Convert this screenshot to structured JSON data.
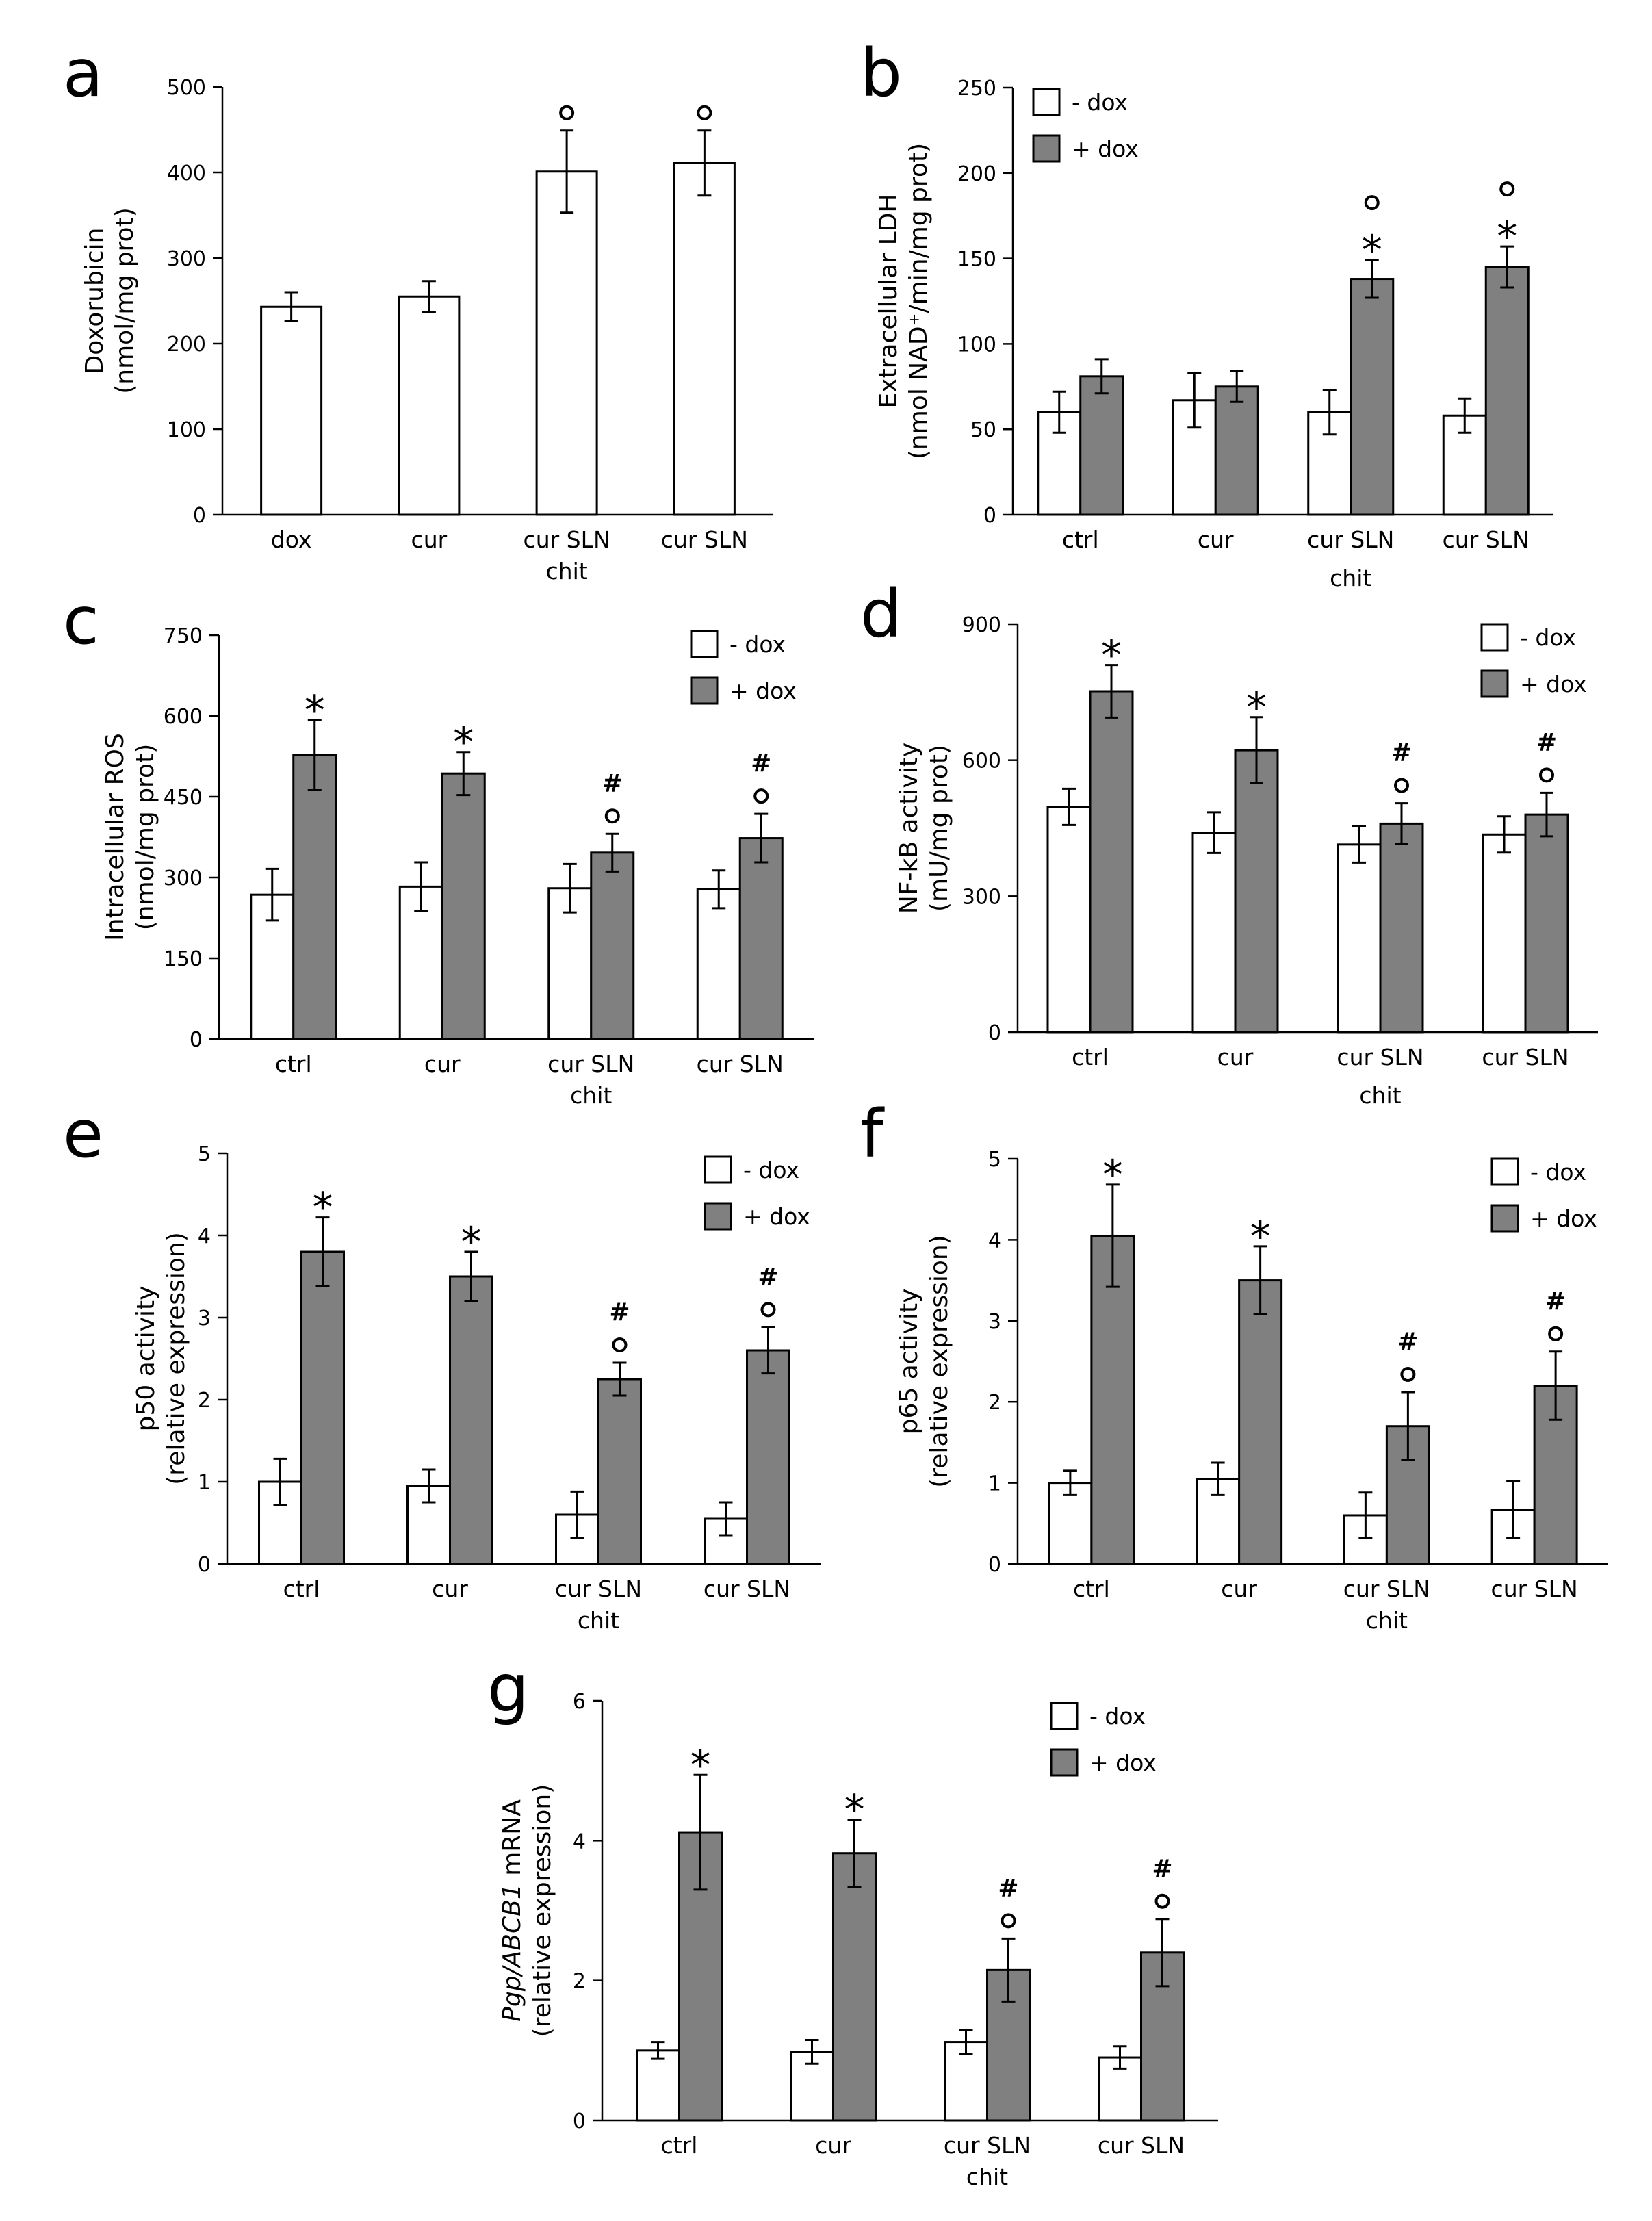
{
  "chart_data": [
    {
      "id": "a",
      "letter": "a",
      "type": "bar",
      "ylabel_lines": [
        "Doxorubicin",
        "(nmol/mg prot)"
      ],
      "yticks": [
        0,
        100,
        200,
        300,
        400,
        500
      ],
      "ylim": [
        0,
        500
      ],
      "categories": [
        [
          "dox"
        ],
        [
          "cur"
        ],
        [
          "cur SLN",
          "chit"
        ],
        [
          "cur SLN"
        ]
      ],
      "legend": [],
      "series": [
        {
          "name": "dox",
          "color": "#ffffff",
          "values": [
            243,
            255,
            401,
            411
          ],
          "errors": [
            17,
            18,
            48,
            38
          ],
          "annotations": [
            [],
            [],
            [
              "o"
            ],
            [
              "o"
            ]
          ]
        }
      ]
    },
    {
      "id": "b",
      "letter": "b",
      "type": "bar",
      "ylabel_lines": [
        "Extracellular LDH",
        "(nmol NAD⁺/min/mg prot)"
      ],
      "yticks": [
        0,
        50,
        100,
        150,
        200,
        250
      ],
      "ylim": [
        0,
        250
      ],
      "categories": [
        [
          "ctrl"
        ],
        [
          "cur"
        ],
        [
          "cur SLN"
        ],
        [
          "cur SLN"
        ]
      ],
      "group_label": "chit",
      "legend": [
        "- dox",
        "+ dox"
      ],
      "series": [
        {
          "name": "- dox",
          "color": "#ffffff",
          "values": [
            60,
            67,
            60,
            58
          ],
          "errors": [
            12,
            16,
            13,
            10
          ],
          "annotations": [
            [],
            [],
            [],
            []
          ]
        },
        {
          "name": "+ dox",
          "color": "#808080",
          "values": [
            81,
            75,
            138,
            145
          ],
          "errors": [
            10,
            9,
            11,
            12
          ],
          "annotations": [
            [],
            [],
            [
              "*",
              "o"
            ],
            [
              "*",
              "o"
            ]
          ]
        }
      ]
    },
    {
      "id": "c",
      "letter": "c",
      "type": "bar",
      "ylabel_lines": [
        "Intracellular ROS",
        "(nmol/mg prot)"
      ],
      "yticks": [
        0,
        150,
        300,
        450,
        600,
        750
      ],
      "ylim": [
        0,
        750
      ],
      "categories": [
        [
          "ctrl"
        ],
        [
          "cur"
        ],
        [
          "cur SLN",
          "chit"
        ],
        [
          "cur SLN"
        ]
      ],
      "legend": [
        "- dox",
        "+ dox"
      ],
      "series": [
        {
          "name": "- dox",
          "color": "#ffffff",
          "values": [
            268,
            283,
            280,
            278
          ],
          "errors": [
            48,
            45,
            45,
            35
          ],
          "annotations": [
            [],
            [],
            [],
            []
          ]
        },
        {
          "name": "+ dox",
          "color": "#808080",
          "values": [
            527,
            493,
            346,
            373
          ],
          "errors": [
            65,
            40,
            35,
            45
          ],
          "annotations": [
            [
              "*"
            ],
            [
              "*"
            ],
            [
              "o",
              "#"
            ],
            [
              "o",
              "#"
            ]
          ]
        }
      ]
    },
    {
      "id": "d",
      "letter": "d",
      "type": "bar",
      "ylabel_lines": [
        "NF-kB activity",
        "(mU/mg prot)"
      ],
      "yticks": [
        0,
        300,
        600,
        900
      ],
      "ylim": [
        0,
        900
      ],
      "categories": [
        [
          "ctrl"
        ],
        [
          "cur"
        ],
        [
          "cur SLN"
        ],
        [
          "cur SLN"
        ]
      ],
      "group_label": "chit",
      "legend": [
        "- dox",
        "+ dox"
      ],
      "series": [
        {
          "name": "- dox",
          "color": "#ffffff",
          "values": [
            497,
            440,
            414,
            436
          ],
          "errors": [
            40,
            45,
            40,
            40
          ],
          "annotations": [
            [],
            [],
            [],
            []
          ]
        },
        {
          "name": "+ dox",
          "color": "#808080",
          "values": [
            752,
            622,
            460,
            480
          ],
          "errors": [
            58,
            73,
            45,
            48
          ],
          "annotations": [
            [
              "*"
            ],
            [
              "*"
            ],
            [
              "o",
              "#"
            ],
            [
              "o",
              "#"
            ]
          ]
        }
      ]
    },
    {
      "id": "e",
      "letter": "e",
      "type": "bar",
      "ylabel_lines": [
        "p50 activity",
        "(relative expression)"
      ],
      "yticks": [
        0,
        1,
        2,
        3,
        4,
        5
      ],
      "ylim": [
        0,
        5
      ],
      "categories": [
        [
          "ctrl"
        ],
        [
          "cur"
        ],
        [
          "cur SLN",
          "chit"
        ],
        [
          "cur SLN"
        ]
      ],
      "legend": [
        "- dox",
        "+ dox"
      ],
      "series": [
        {
          "name": "- dox",
          "color": "#ffffff",
          "values": [
            1.0,
            0.95,
            0.6,
            0.55
          ],
          "errors": [
            0.28,
            0.2,
            0.28,
            0.2
          ],
          "annotations": [
            [],
            [],
            [],
            []
          ]
        },
        {
          "name": "+ dox",
          "color": "#808080",
          "values": [
            3.8,
            3.5,
            2.25,
            2.6
          ],
          "errors": [
            0.42,
            0.3,
            0.2,
            0.28
          ],
          "annotations": [
            [
              "*"
            ],
            [
              "*"
            ],
            [
              "o",
              "#"
            ],
            [
              "o",
              "#"
            ]
          ]
        }
      ]
    },
    {
      "id": "f",
      "letter": "f",
      "type": "bar",
      "ylabel_lines": [
        "p65 activity",
        "(relative expression)"
      ],
      "yticks": [
        0,
        1,
        2,
        3,
        4,
        5
      ],
      "ylim": [
        0,
        5
      ],
      "categories": [
        [
          "ctrl"
        ],
        [
          "cur"
        ],
        [
          "cur SLN",
          "chit"
        ],
        [
          "cur SLN"
        ]
      ],
      "legend": [
        "- dox",
        "+ dox"
      ],
      "series": [
        {
          "name": "- dox",
          "color": "#ffffff",
          "values": [
            1.0,
            1.05,
            0.6,
            0.67
          ],
          "errors": [
            0.15,
            0.2,
            0.28,
            0.35
          ],
          "annotations": [
            [],
            [],
            [],
            []
          ]
        },
        {
          "name": "+ dox",
          "color": "#808080",
          "values": [
            4.05,
            3.5,
            1.7,
            2.2
          ],
          "errors": [
            0.63,
            0.42,
            0.42,
            0.42
          ],
          "annotations": [
            [
              "*"
            ],
            [
              "*"
            ],
            [
              "o",
              "#"
            ],
            [
              "o",
              "#"
            ]
          ]
        }
      ]
    },
    {
      "id": "g",
      "letter": "g",
      "type": "bar",
      "ylabel_lines": [
        [
          "Pgp/ABCB1",
          " mRNA"
        ],
        "(relative expression)"
      ],
      "yticks": [
        0,
        2,
        4,
        6
      ],
      "ylim": [
        0,
        6
      ],
      "categories": [
        [
          "ctrl"
        ],
        [
          "cur"
        ],
        [
          "cur SLN",
          "chit"
        ],
        [
          "cur SLN"
        ]
      ],
      "legend": [
        "- dox",
        "+ dox"
      ],
      "series": [
        {
          "name": "- dox",
          "color": "#ffffff",
          "values": [
            1.0,
            0.98,
            1.12,
            0.9
          ],
          "errors": [
            0.12,
            0.17,
            0.17,
            0.16
          ],
          "annotations": [
            [],
            [],
            [],
            []
          ]
        },
        {
          "name": "+ dox",
          "color": "#808080",
          "values": [
            4.12,
            3.82,
            2.15,
            2.4
          ],
          "errors": [
            0.82,
            0.48,
            0.45,
            0.48
          ],
          "annotations": [
            [
              "*"
            ],
            [
              "*"
            ],
            [
              "o",
              "#"
            ],
            [
              "o",
              "#"
            ]
          ]
        }
      ]
    }
  ]
}
